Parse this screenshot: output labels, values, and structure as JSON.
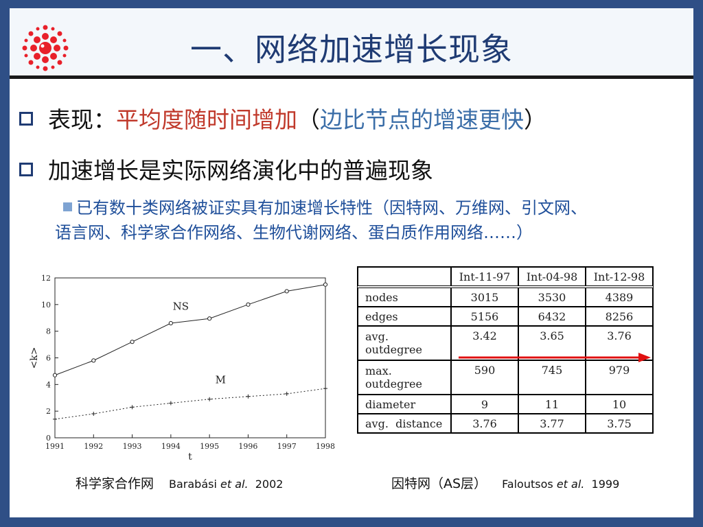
{
  "slide": {
    "title": "一、网络加速增长现象",
    "bullet1": {
      "prefix": "表现：",
      "highlight_red": "平均度随时间增加",
      "paren_open": "（",
      "highlight_blue": "边比节点的增速更快",
      "paren_close": "）"
    },
    "bullet2": "加速增长是实际网络演化中的普遍现象",
    "sub_line1": "已有数十类网络被证实具有加速增长特性（因特网、万维网、引文网、",
    "sub_line2": "语言网、科学家合作网络、生物代谢网络、蛋白质作用网络……）",
    "caption_left": {
      "text": "科学家合作网",
      "author": "Barabási",
      "etal": "et al.",
      "year": "2002"
    },
    "caption_right": {
      "text": "因特网（AS层）",
      "author": "Faloutsos",
      "etal": "et al.",
      "year": "1999"
    }
  },
  "chart_data": {
    "type": "line",
    "x": [
      1991,
      1992,
      1993,
      1994,
      1995,
      1996,
      1997,
      1998
    ],
    "series": [
      {
        "name": "NS",
        "values": [
          4.7,
          5.8,
          7.2,
          8.6,
          8.95,
          10.0,
          11.0,
          11.5
        ]
      },
      {
        "name": "M",
        "values": [
          1.4,
          1.8,
          2.3,
          2.6,
          2.9,
          3.1,
          3.3,
          3.7
        ]
      }
    ],
    "xlabel": "t",
    "ylabel": "<k>",
    "xlim": [
      1991,
      1998
    ],
    "ylim": [
      0,
      12
    ],
    "yticks": [
      0,
      2,
      4,
      6,
      8,
      10,
      12
    ],
    "grid": false
  },
  "table": {
    "headers": [
      "Int-11-97",
      "Int-04-98",
      "Int-12-98"
    ],
    "rows": [
      {
        "label": "nodes",
        "values": [
          "3015",
          "3530",
          "4389"
        ]
      },
      {
        "label": "edges",
        "values": [
          "5156",
          "6432",
          "8256"
        ]
      },
      {
        "label": "avg.",
        "label2": "outdegree",
        "values": [
          "3.42",
          "3.65",
          "3.76"
        ]
      },
      {
        "label": "max.",
        "label2": "outdegree",
        "values": [
          "590",
          "745",
          "979"
        ]
      },
      {
        "label": "diameter",
        "values": [
          "9",
          "11",
          "10"
        ]
      },
      {
        "label": "avg.  distance",
        "values": [
          "3.76",
          "3.77",
          "3.75"
        ]
      }
    ],
    "arrow_color": "#e01010"
  }
}
